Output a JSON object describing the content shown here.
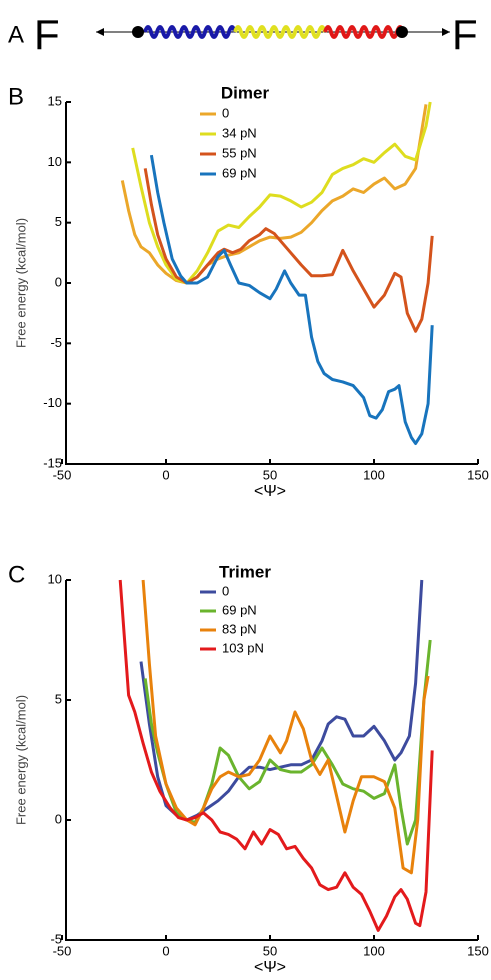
{
  "panel_a": {
    "label": "A",
    "force_left": "F",
    "force_right": "F"
  },
  "chart_data": [
    {
      "type": "line",
      "panel_label": "B",
      "title": "Dimer",
      "x_label": "<Ψ>",
      "y_label": "Free energy (kcal/mol)",
      "xlim": [
        -50,
        150
      ],
      "xticks": [
        -50,
        0,
        50,
        100,
        150
      ],
      "ylim": [
        -15,
        15
      ],
      "yticks": [
        -15,
        -10,
        -5,
        0,
        5,
        10,
        15
      ],
      "series": [
        {
          "name": "0",
          "color": "#eba72a",
          "x": [
            -21,
            -18,
            -15,
            -12,
            -8,
            -4,
            0,
            5,
            10,
            15,
            20,
            25,
            30,
            35,
            40,
            45,
            50,
            55,
            60,
            65,
            70,
            75,
            80,
            85,
            90,
            95,
            100,
            105,
            110,
            115,
            120,
            125
          ],
          "values": [
            8.5,
            6,
            4,
            3,
            2.5,
            1.5,
            0.8,
            0.2,
            0,
            0.5,
            1.5,
            2,
            2.3,
            2.5,
            3,
            3.5,
            3.8,
            3.7,
            3.8,
            4.2,
            5,
            6,
            6.8,
            7.2,
            7.8,
            7.5,
            8.2,
            8.7,
            7.8,
            8.2,
            9.5,
            14.8
          ]
        },
        {
          "name": "34 pN",
          "color": "#dedd1f",
          "x": [
            -16,
            -12,
            -8,
            -4,
            0,
            5,
            10,
            15,
            20,
            25,
            30,
            35,
            40,
            45,
            50,
            55,
            60,
            65,
            70,
            75,
            80,
            85,
            90,
            95,
            100,
            105,
            110,
            115,
            120,
            125,
            127
          ],
          "values": [
            11.2,
            8,
            5,
            3,
            1.5,
            0.3,
            0,
            1,
            2.5,
            4.3,
            4.8,
            4.6,
            5.5,
            6.3,
            7.3,
            7.2,
            6.8,
            6.3,
            6.7,
            7.5,
            9,
            9.5,
            9.8,
            10.3,
            10,
            10.8,
            11.5,
            10.5,
            10.2,
            13,
            15
          ]
        },
        {
          "name": "55 pN",
          "color": "#d4531c",
          "x": [
            -10,
            -7,
            -4,
            0,
            5,
            10,
            15,
            20,
            25,
            28,
            32,
            36,
            40,
            45,
            48,
            52,
            56,
            60,
            65,
            70,
            75,
            80,
            85,
            90,
            95,
            100,
            105,
            110,
            113,
            116,
            120,
            123,
            126,
            128
          ],
          "values": [
            9.5,
            6.5,
            4,
            2,
            0.5,
            0,
            0.5,
            1.5,
            2.5,
            2.8,
            2.5,
            2.8,
            3.5,
            4,
            4.5,
            4.1,
            3.3,
            2.5,
            1.5,
            0.6,
            0.6,
            0.7,
            2.7,
            1,
            -0.5,
            -2,
            -1,
            0.8,
            0.5,
            -2.5,
            -4,
            -3,
            0,
            3.9
          ]
        },
        {
          "name": "69 pN",
          "color": "#1874bd",
          "x": [
            -7,
            -4,
            -1,
            3,
            7,
            10,
            15,
            20,
            25,
            28,
            31,
            35,
            40,
            45,
            50,
            53,
            57,
            60,
            64,
            67,
            70,
            73,
            76,
            80,
            85,
            90,
            95,
            98,
            101,
            104,
            107,
            110,
            112,
            115,
            118,
            120,
            123,
            126,
            128
          ],
          "values": [
            10.6,
            7.5,
            5,
            2,
            0.6,
            0,
            0,
            0.5,
            2.2,
            2.7,
            1.5,
            0,
            -0.2,
            -0.8,
            -1.3,
            -0.5,
            1,
            0,
            -1,
            -1,
            -4.5,
            -6.5,
            -7.5,
            -8,
            -8.2,
            -8.5,
            -9.5,
            -11,
            -11.2,
            -10.5,
            -9,
            -8.8,
            -8.5,
            -11.5,
            -12.8,
            -13.3,
            -12.5,
            -10,
            -3.5
          ]
        }
      ]
    },
    {
      "type": "line",
      "panel_label": "C",
      "title": "Trimer",
      "x_label": "<Ψ>",
      "y_label": "Free energy (kcal/mol)",
      "xlim": [
        -50,
        150
      ],
      "xticks": [
        -50,
        0,
        50,
        100,
        150
      ],
      "ylim": [
        -5,
        10
      ],
      "yticks": [
        -5,
        0,
        5,
        10
      ],
      "series": [
        {
          "name": "0",
          "color": "#3d4b9e",
          "x": [
            -12,
            -8,
            -4,
            0,
            5,
            10,
            15,
            20,
            25,
            30,
            35,
            40,
            45,
            50,
            55,
            60,
            65,
            70,
            75,
            78,
            82,
            86,
            90,
            95,
            100,
            105,
            110,
            113,
            117,
            120,
            123
          ],
          "values": [
            6.6,
            4,
            1.8,
            0.6,
            0.2,
            0,
            0.2,
            0.5,
            0.8,
            1.2,
            1.8,
            2.2,
            2.2,
            2.1,
            2.2,
            2.3,
            2.3,
            2.5,
            3.3,
            4,
            4.3,
            4.2,
            3.5,
            3.5,
            3.9,
            3.3,
            2.5,
            2.8,
            3.5,
            5.7,
            10
          ]
        },
        {
          "name": "69 pN",
          "color": "#6ab42d",
          "x": [
            -10,
            -7,
            -4,
            0,
            5,
            10,
            14,
            18,
            22,
            26,
            30,
            35,
            40,
            45,
            50,
            55,
            60,
            65,
            70,
            75,
            80,
            85,
            90,
            95,
            100,
            105,
            110,
            113,
            116,
            120,
            124,
            127
          ],
          "values": [
            5.9,
            4,
            2.8,
            1.5,
            0.3,
            0,
            -0.1,
            0.5,
            1.5,
            3,
            2.7,
            1.8,
            1.3,
            1.6,
            2.5,
            2.1,
            2,
            2,
            2.3,
            3,
            2.3,
            1.5,
            1.3,
            1.2,
            0.9,
            1.1,
            2.3,
            0.5,
            -1,
            0,
            5,
            7.5
          ]
        },
        {
          "name": "83 pN",
          "color": "#e8820c",
          "x": [
            -11,
            -8,
            -5,
            0,
            5,
            10,
            14,
            18,
            22,
            26,
            30,
            35,
            40,
            45,
            50,
            55,
            58,
            62,
            66,
            70,
            74,
            78,
            82,
            86,
            90,
            94,
            100,
            105,
            110,
            114,
            118,
            121,
            124,
            126
          ],
          "values": [
            10,
            6.5,
            3.5,
            1.5,
            0.5,
            0,
            -0.2,
            0.5,
            1.3,
            1.8,
            2,
            1.8,
            1.9,
            2.5,
            3.5,
            2.8,
            3.3,
            4.5,
            3.8,
            2.5,
            1.9,
            2.5,
            1,
            -0.5,
            0.8,
            1.8,
            1.8,
            1.6,
            0.5,
            -2,
            -2.2,
            0,
            5,
            6
          ]
        },
        {
          "name": "103 pN",
          "color": "#e31a1c",
          "x": [
            -22,
            -18,
            -15,
            -11,
            -7,
            -3,
            2,
            6,
            10,
            14,
            18,
            22,
            26,
            30,
            34,
            38,
            42,
            46,
            50,
            54,
            58,
            62,
            66,
            70,
            74,
            78,
            82,
            86,
            90,
            94,
            98,
            102,
            106,
            110,
            113,
            116,
            120,
            122,
            125,
            128
          ],
          "values": [
            10,
            5.2,
            4.5,
            3.2,
            2,
            1.2,
            0.5,
            0.1,
            0,
            0.1,
            0.3,
            0,
            -0.5,
            -0.6,
            -0.8,
            -1.2,
            -0.5,
            -1,
            -0.4,
            -0.6,
            -1.2,
            -1.1,
            -1.6,
            -2,
            -2.7,
            -2.9,
            -2.8,
            -2.2,
            -2.8,
            -3.1,
            -3.8,
            -4.6,
            -4,
            -3.2,
            -2.9,
            -3.3,
            -4.3,
            -4.4,
            -3,
            2.9
          ]
        }
      ]
    }
  ]
}
